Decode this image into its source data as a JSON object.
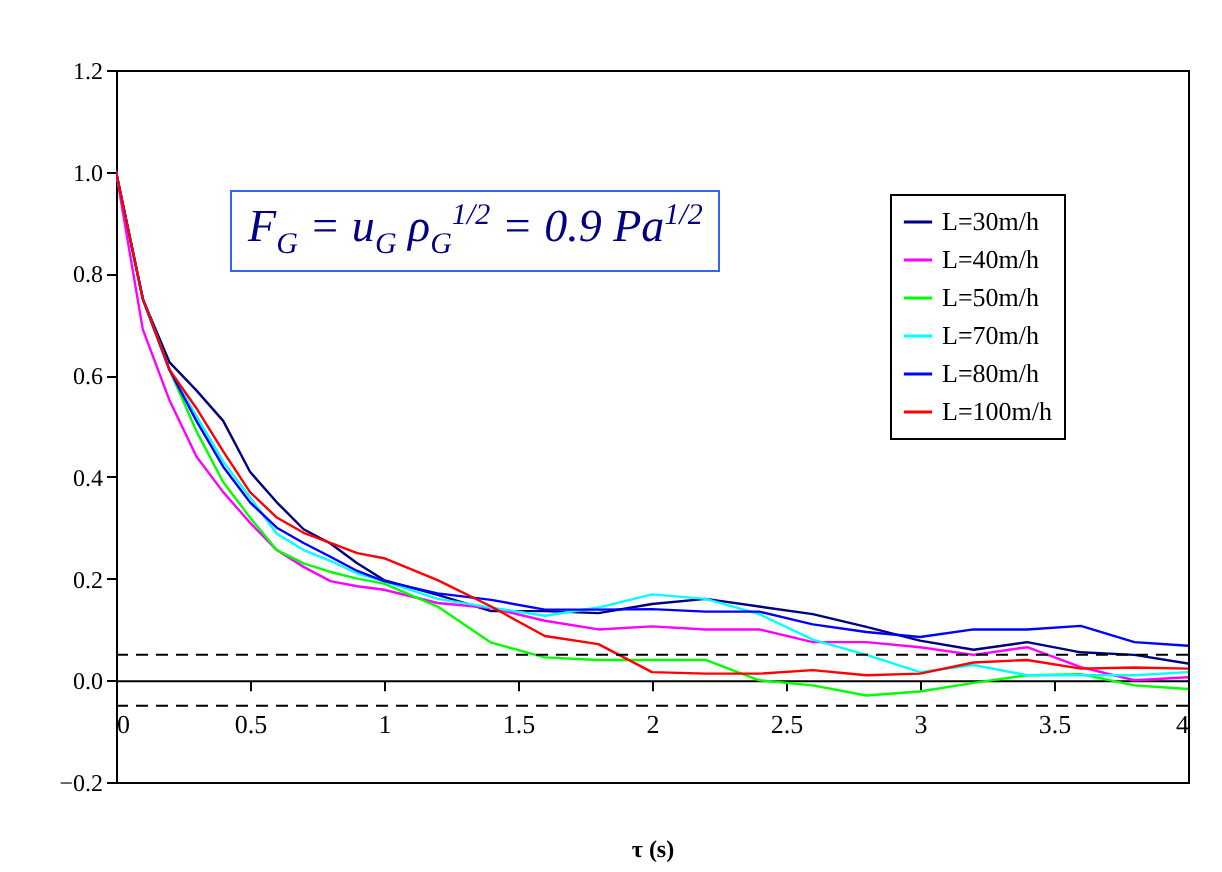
{
  "chart_data": {
    "type": "line",
    "xlabel": "τ (s)",
    "x": [
      0,
      0.1,
      0.2,
      0.3,
      0.4,
      0.5,
      0.6,
      0.7,
      0.8,
      0.9,
      1.0,
      1.2,
      1.4,
      1.6,
      1.8,
      2.0,
      2.2,
      2.4,
      2.6,
      2.8,
      3.0,
      3.2,
      3.4,
      3.6,
      3.8,
      4.0
    ],
    "series": [
      {
        "name": "L=30m/h",
        "color": "#000080",
        "values": [
          1.0,
          0.75,
          0.625,
          0.57,
          0.51,
          0.41,
          0.35,
          0.297,
          0.269,
          0.23,
          0.197,
          0.168,
          0.136,
          0.136,
          0.132,
          0.15,
          0.16,
          0.145,
          0.13,
          0.105,
          0.078,
          0.06,
          0.075,
          0.055,
          0.05,
          0.033
        ]
      },
      {
        "name": "L=40m/h",
        "color": "#ff00ff",
        "values": [
          1.0,
          0.69,
          0.55,
          0.44,
          0.37,
          0.31,
          0.256,
          0.223,
          0.195,
          0.185,
          0.178,
          0.152,
          0.142,
          0.117,
          0.1,
          0.106,
          0.1,
          0.1,
          0.075,
          0.075,
          0.065,
          0.05,
          0.065,
          0.026,
          0.0,
          0.006
        ]
      },
      {
        "name": "L=50m/h",
        "color": "#00ff00",
        "values": [
          1.0,
          0.75,
          0.61,
          0.49,
          0.39,
          0.32,
          0.256,
          0.23,
          0.213,
          0.2,
          0.19,
          0.145,
          0.074,
          0.045,
          0.04,
          0.04,
          0.04,
          0.0,
          -0.01,
          -0.03,
          -0.022,
          -0.005,
          0.01,
          0.012,
          -0.01,
          -0.017
        ]
      },
      {
        "name": "L=70m/h",
        "color": "#00ffff",
        "values": [
          1.0,
          0.75,
          0.61,
          0.52,
          0.43,
          0.36,
          0.288,
          0.256,
          0.235,
          0.21,
          0.195,
          0.16,
          0.143,
          0.127,
          0.143,
          0.169,
          0.16,
          0.13,
          0.08,
          0.05,
          0.016,
          0.03,
          0.01,
          0.01,
          0.01,
          0.016
        ]
      },
      {
        "name": "L=80m/h",
        "color": "#0000ff",
        "values": [
          1.0,
          0.75,
          0.61,
          0.51,
          0.42,
          0.35,
          0.3,
          0.27,
          0.243,
          0.215,
          0.195,
          0.171,
          0.158,
          0.139,
          0.139,
          0.14,
          0.135,
          0.135,
          0.11,
          0.095,
          0.085,
          0.1,
          0.1,
          0.107,
          0.075,
          0.068
        ]
      },
      {
        "name": "L=100m/h",
        "color": "#ff0000",
        "values": [
          1.0,
          0.75,
          0.61,
          0.535,
          0.45,
          0.37,
          0.32,
          0.29,
          0.27,
          0.25,
          0.24,
          0.197,
          0.145,
          0.087,
          0.071,
          0.016,
          0.013,
          0.013,
          0.02,
          0.01,
          0.013,
          0.035,
          0.04,
          0.023,
          0.025,
          0.023
        ]
      }
    ],
    "xlim": [
      0,
      4
    ],
    "xticks": [
      0,
      0.5,
      1,
      1.5,
      2,
      2.5,
      3,
      3.5,
      4
    ],
    "ylim": [
      -0.2,
      1.2
    ],
    "yticks": [
      -0.2,
      {
        "value": 0,
        "label": "0.0"
      },
      0.2,
      0.4,
      0.6,
      0.8,
      {
        "value": 1,
        "label": "1.0"
      },
      1.2
    ],
    "ref_lines": [
      {
        "axis": "y",
        "value": 0.05,
        "color": "#000000",
        "line_style": "dashed"
      },
      {
        "axis": "y",
        "value": -0.05,
        "color": "#000000",
        "line_style": "dashed"
      }
    ],
    "annotations": [
      "F$_{G}$ = u$_{G}$ ρ$_{G}$$^{1/2}$ = 0.9 Pa$^{1/2}$"
    ],
    "legend": "top right",
    "grid": false,
    "marker": "none",
    "line_style": "solid"
  }
}
